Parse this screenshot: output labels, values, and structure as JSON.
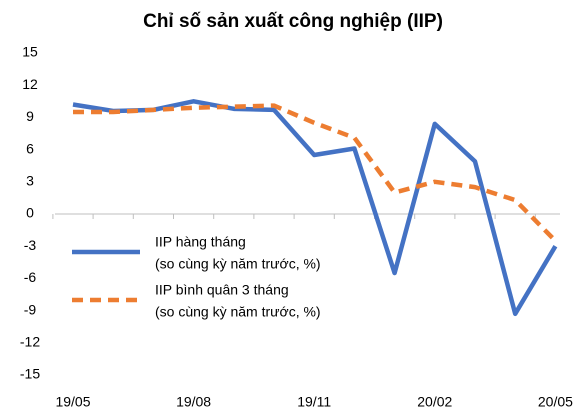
{
  "chart_data": {
    "type": "line",
    "title": "Chỉ số sản xuất công nghiệp  (IIP)",
    "categories": [
      "19/05",
      null,
      null,
      "19/08",
      null,
      null,
      "19/11",
      null,
      null,
      "20/02",
      null,
      null,
      "20/05"
    ],
    "series": [
      {
        "name": "IIP hàng tháng",
        "note": "(so cùng kỳ năm trước, %)",
        "color": "#4472c4",
        "dash": false,
        "values": [
          10.2,
          9.6,
          9.7,
          10.5,
          9.8,
          9.7,
          5.5,
          6.1,
          -5.5,
          8.4,
          4.9,
          -9.3,
          -3.0
        ]
      },
      {
        "name": "IIP bình quân 3 tháng",
        "note": "(so cùng kỳ năm trước, %)",
        "color": "#ed7d31",
        "dash": true,
        "values": [
          9.5,
          9.5,
          9.7,
          9.9,
          10.0,
          10.1,
          8.5,
          7.1,
          2.0,
          3.0,
          2.5,
          1.3,
          -2.5
        ]
      }
    ],
    "ylim": [
      -15,
      15
    ],
    "yticks": [
      -15,
      -12,
      -9,
      -6,
      -3,
      0,
      3,
      6,
      9,
      12,
      15
    ],
    "grid": false
  }
}
